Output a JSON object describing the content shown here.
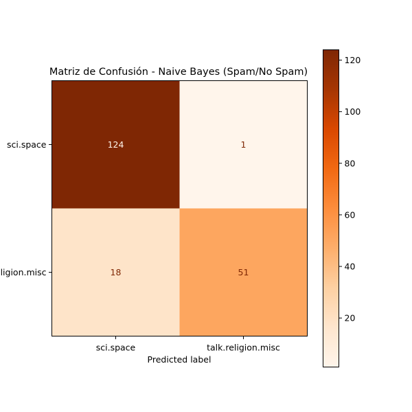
{
  "chart_data": {
    "type": "heatmap",
    "title": "Matriz de Confusión - Naive Bayes (Spam/No Spam)",
    "xlabel": "Predicted label",
    "ylabel": "",
    "x_categories": [
      "sci.space",
      "talk.religion.misc"
    ],
    "y_categories": [
      "sci.space",
      "talk.religion.misc"
    ],
    "values": [
      [
        124,
        1
      ],
      [
        18,
        51
      ]
    ],
    "colormap": "Oranges",
    "colorbar": {
      "min": 1,
      "max": 124,
      "ticks": [
        20,
        40,
        60,
        80,
        100,
        120
      ],
      "tick_labels": [
        "20",
        "40",
        "60",
        "80",
        "100",
        "120"
      ]
    },
    "grid": false,
    "legend": "colorbar-right"
  }
}
